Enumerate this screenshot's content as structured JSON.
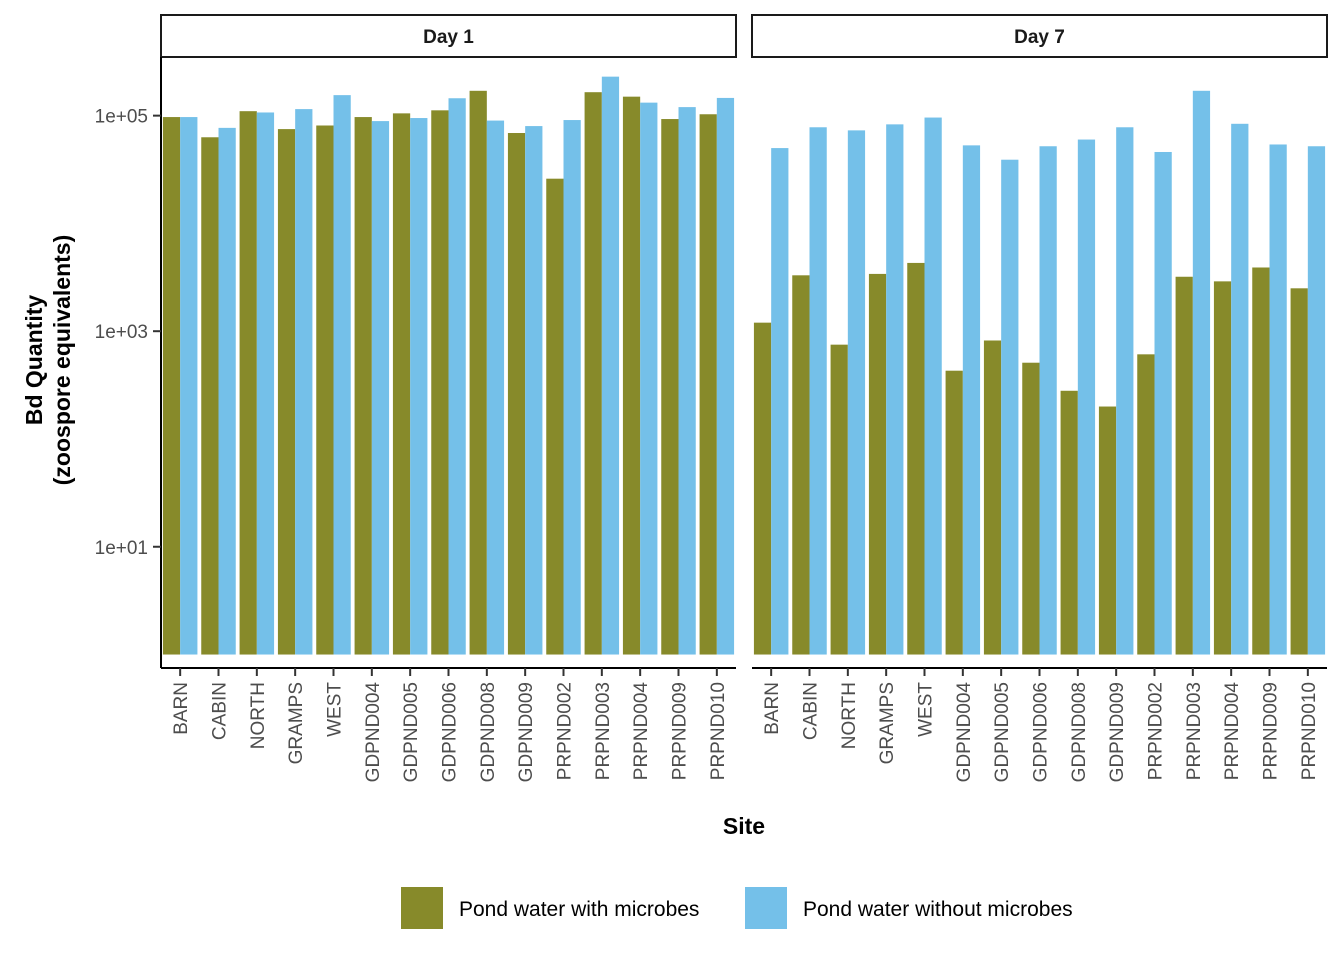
{
  "chart_data": {
    "type": "bar",
    "scale": "log10",
    "ylabel_line1": "Bd Quantity",
    "ylabel_line2": "(zoospore equivalents)",
    "xlabel": "Site",
    "y_ticks": [
      {
        "value": 10,
        "label": "1e+01"
      },
      {
        "value": 1000,
        "label": "1e+03"
      },
      {
        "value": 100000,
        "label": "1e+05"
      }
    ],
    "ylim": [
      0.75,
      350000
    ],
    "bar_baseline": 1,
    "categories": [
      "BARN",
      "CABIN",
      "NORTH",
      "GRAMPS",
      "WEST",
      "GDPND004",
      "GDPND005",
      "GDPND006",
      "GDPND008",
      "GDPND009",
      "PRPND002",
      "PRPND003",
      "PRPND004",
      "PRPND009",
      "PRPND010"
    ],
    "colors": {
      "with_microbes": "#878a2a",
      "without_microbes": "#74c0e9"
    },
    "legend": {
      "position": "bottom",
      "items": [
        {
          "key": "with_microbes",
          "label": "Pond water with microbes"
        },
        {
          "key": "without_microbes",
          "label": "Pond water without microbes"
        }
      ]
    },
    "panels": [
      {
        "title": "Day 1",
        "series": [
          {
            "key": "with_microbes",
            "name": "Pond water with microbes",
            "values": [
              97000,
              63000,
              110000,
              75000,
              81000,
              97000,
              105000,
              112000,
              170000,
              69000,
              26000,
              165000,
              150000,
              93000,
              103000
            ]
          },
          {
            "key": "without_microbes",
            "name": "Pond water without microbes",
            "values": [
              97000,
              77000,
              107000,
              115000,
              155000,
              89000,
              95000,
              145000,
              90000,
              80000,
              91000,
              230000,
              132000,
              120000,
              146000
            ]
          }
        ]
      },
      {
        "title": "Day 7",
        "series": [
          {
            "key": "with_microbes",
            "name": "Pond water with microbes",
            "values": [
              1200,
              3300,
              750,
              3400,
              4300,
              430,
              820,
              510,
              280,
              200,
              610,
              3200,
              2900,
              3900,
              2500
            ]
          },
          {
            "key": "without_microbes",
            "name": "Pond water without microbes",
            "values": [
              50000,
              78000,
              73000,
              83000,
              96000,
              53000,
              39000,
              52000,
              60000,
              78000,
              46000,
              170000,
              84000,
              54000,
              52000
            ]
          }
        ]
      }
    ]
  }
}
